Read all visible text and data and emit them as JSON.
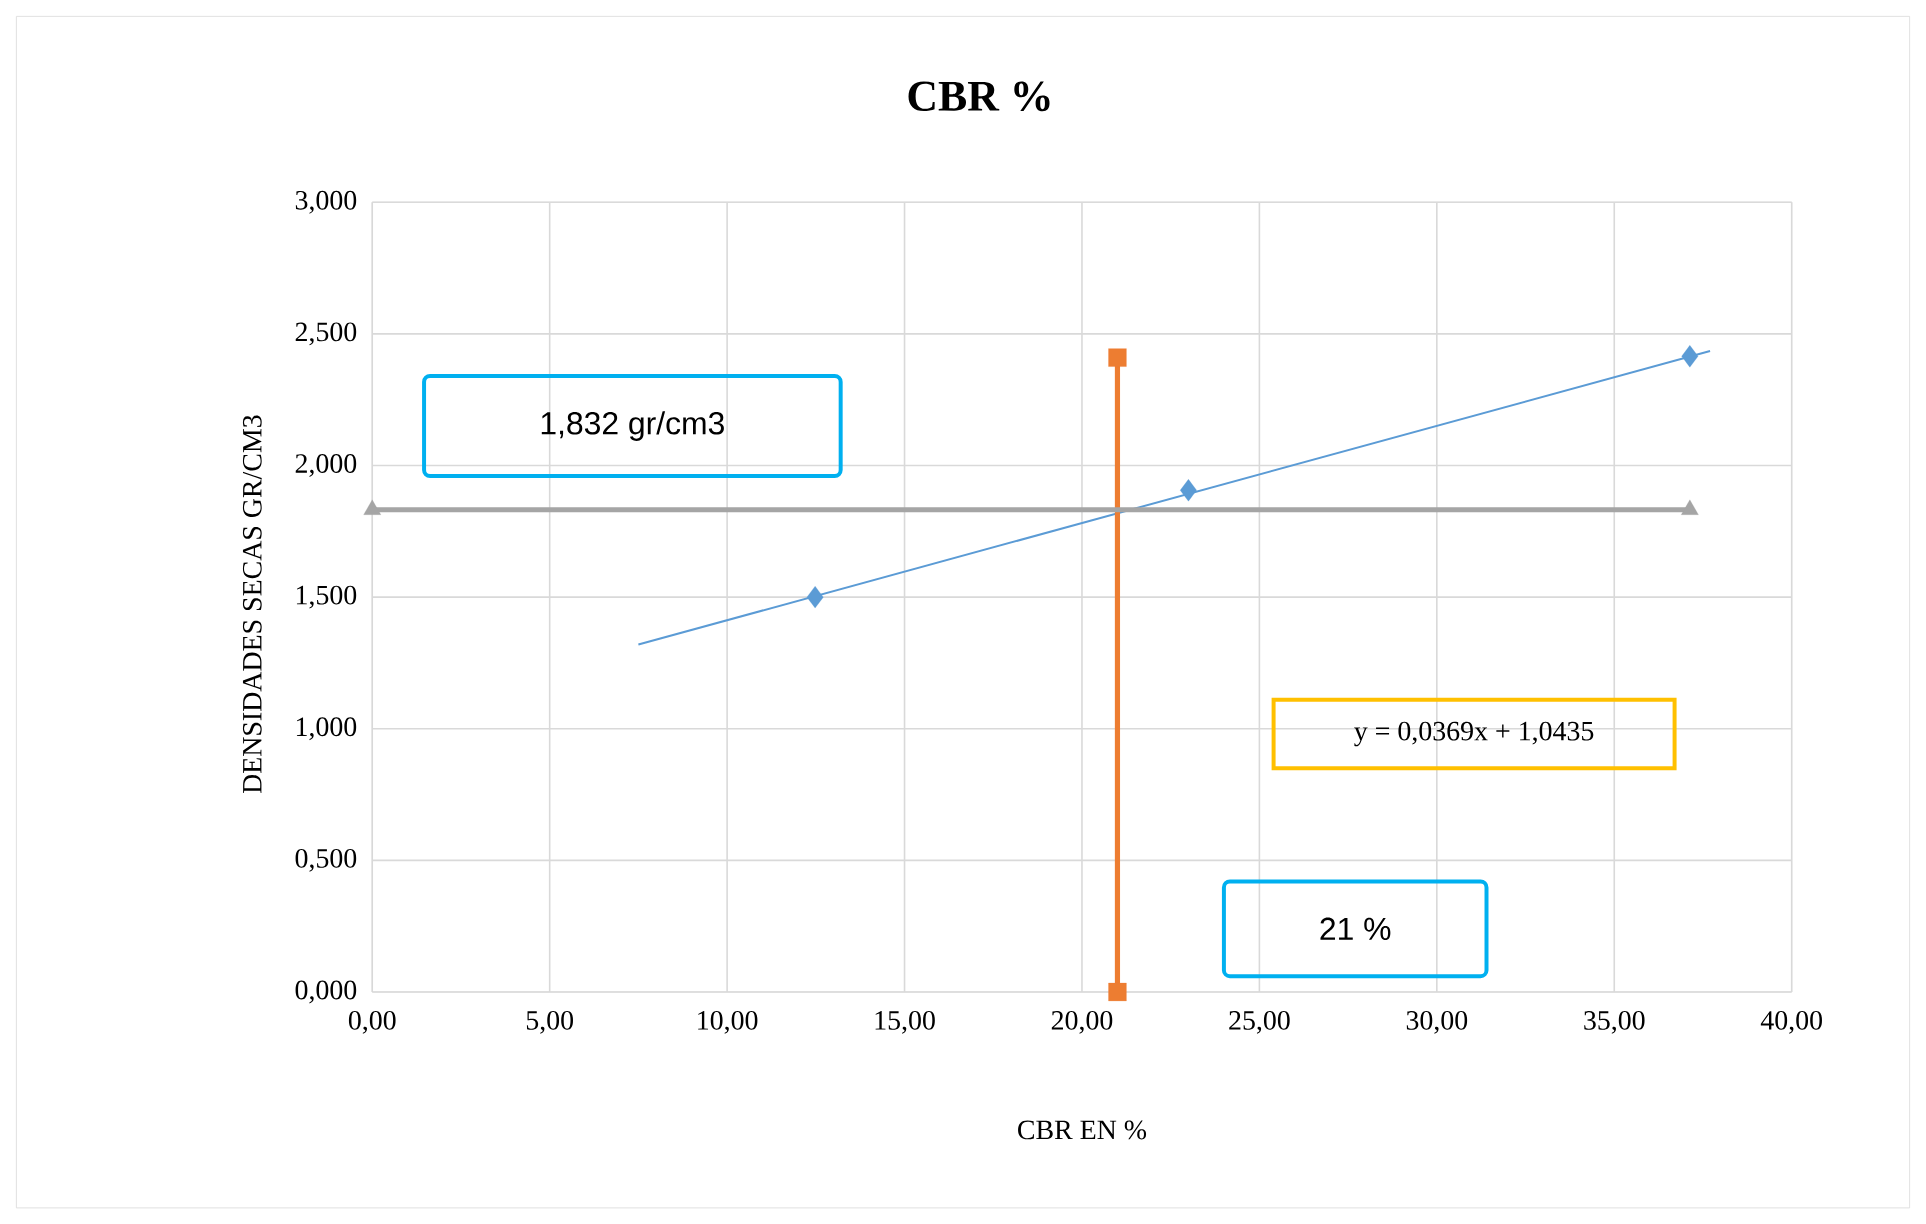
{
  "chart_data": {
    "type": "scatter",
    "title": "CBR %",
    "xlabel": "CBR EN %",
    "ylabel": "DENSIDADES SECAS GR/CM3",
    "xlim": [
      0,
      40
    ],
    "ylim": [
      0,
      3
    ],
    "xticks": [
      {
        "value": 0,
        "label": "0,00"
      },
      {
        "value": 5,
        "label": "5,00"
      },
      {
        "value": 10,
        "label": "10,00"
      },
      {
        "value": 15,
        "label": "15,00"
      },
      {
        "value": 20,
        "label": "20,00"
      },
      {
        "value": 25,
        "label": "25,00"
      },
      {
        "value": 30,
        "label": "30,00"
      },
      {
        "value": 35,
        "label": "35,00"
      },
      {
        "value": 40,
        "label": "40,00"
      }
    ],
    "yticks": [
      {
        "value": 0,
        "label": "0,000"
      },
      {
        "value": 0.5,
        "label": "0,500"
      },
      {
        "value": 1,
        "label": "1,000"
      },
      {
        "value": 1.5,
        "label": "1,500"
      },
      {
        "value": 2,
        "label": "2,000"
      },
      {
        "value": 2.5,
        "label": "2,500"
      },
      {
        "value": 3,
        "label": "3,000"
      }
    ],
    "grid": true,
    "series": [
      {
        "marker": "diamond",
        "color": "#5b9bd5",
        "x": [
          12.48,
          23.0,
          37.13
        ],
        "values": [
          1.5,
          1.906,
          2.415
        ]
      },
      {
        "type": "line",
        "marker": "none",
        "color": "#5b9bd5",
        "x": [
          7.5,
          37.7
        ],
        "values": [
          1.32,
          2.435
        ]
      },
      {
        "type": "line",
        "marker": "square",
        "color": "#ed7d31",
        "x": [
          21,
          21
        ],
        "values": [
          0,
          2.41
        ]
      },
      {
        "type": "line",
        "marker": "triangle",
        "color": "#a5a5a5",
        "x": [
          0,
          37.13
        ],
        "values": [
          1.832,
          1.832
        ]
      }
    ],
    "annotations": [
      "1,832 gr/cm3",
      "21 %",
      "y = 0,0369x + 1,0435"
    ]
  }
}
